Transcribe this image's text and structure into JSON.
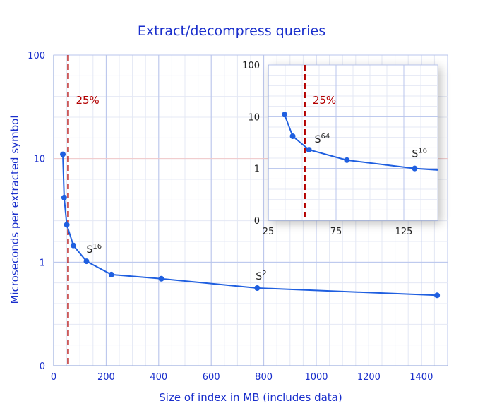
{
  "chart_data": [
    {
      "type": "line",
      "title": "Extract/decompress queries",
      "xlabel": "Size of index in MB (includes data)",
      "ylabel": "Microseconds per extracted symbol",
      "xlim": [
        0,
        1500
      ],
      "ylim": [
        0,
        100
      ],
      "y_scale": "log",
      "y_ticks": [
        "0",
        "1",
        "10",
        "100"
      ],
      "x_ticks": [
        "0",
        "200",
        "400",
        "600",
        "800",
        "1000",
        "1200",
        "1400"
      ],
      "grid": true,
      "series": [
        {
          "x": [
            35,
            40,
            50,
            75,
            125,
            220,
            410,
            775,
            1460
          ],
          "y": [
            11,
            4.2,
            2.3,
            1.45,
            1.02,
            0.88,
            0.84,
            0.75,
            0.68
          ],
          "color": "#1f5fe0"
        }
      ],
      "annotations": [
        {
          "base": "S",
          "sup": "16",
          "x": 125,
          "y": 1.02
        },
        {
          "base": "S",
          "sup": "2",
          "x": 775,
          "y": 0.75
        }
      ],
      "threshold": {
        "x": 55,
        "label": "25%",
        "color": "#b30000"
      }
    },
    {
      "type": "line",
      "xlim": [
        25,
        150
      ],
      "ylim": [
        0,
        100
      ],
      "y_scale": "log",
      "y_ticks": [
        "0",
        "1",
        "10",
        "100"
      ],
      "x_ticks": [
        "25",
        "75",
        "125"
      ],
      "grid": true,
      "series": [
        {
          "x": [
            37,
            43,
            55,
            83,
            133,
            150
          ],
          "y": [
            11,
            4.2,
            2.3,
            1.45,
            1.0,
            0.97
          ],
          "color": "#1f5fe0"
        }
      ],
      "annotations": [
        {
          "base": "S",
          "sup": "64",
          "x": 55,
          "y": 2.3
        },
        {
          "base": "S",
          "sup": "16",
          "x": 133,
          "y": 1.0
        }
      ],
      "threshold": {
        "x": 52,
        "label": "25%",
        "color": "#b30000"
      }
    }
  ]
}
